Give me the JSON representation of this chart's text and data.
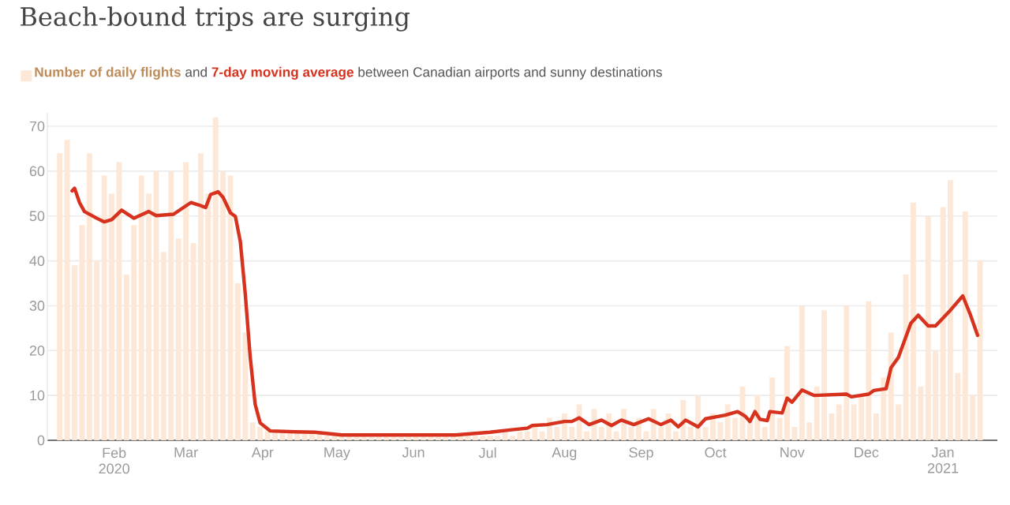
{
  "chart_data": {
    "type": "bar",
    "title": "Beach-bound trips are surging",
    "subtitle": "between Canadian airports and sunny destinations",
    "annotations": [
      "and"
    ],
    "xlim": [
      "2020-01-05",
      "2021-01-23"
    ],
    "ylim": [
      0,
      73
    ],
    "xticks": [
      {
        "value": "2020-02-01",
        "label": "Feb 2020"
      },
      {
        "value": "2020-03-01",
        "label": "Mar"
      },
      {
        "value": "2020-04-01",
        "label": "Apr"
      },
      {
        "value": "2020-05-01",
        "label": "May"
      },
      {
        "value": "2020-06-01",
        "label": "Jun"
      },
      {
        "value": "2020-07-01",
        "label": "Jul"
      },
      {
        "value": "2020-08-01",
        "label": "Aug"
      },
      {
        "value": "2020-09-01",
        "label": "Sep"
      },
      {
        "value": "2020-10-01",
        "label": "Oct"
      },
      {
        "value": "2020-11-01",
        "label": "Nov"
      },
      {
        "value": "2020-12-01",
        "label": "Dec"
      },
      {
        "value": "2021-01-01",
        "label": "Jan 2021"
      }
    ],
    "yticks": [
      0,
      10,
      20,
      30,
      40,
      50,
      60,
      70
    ],
    "grid": "y",
    "legend": "top",
    "series": [
      {
        "name": "Number of daily flights",
        "color": "#fde8d8",
        "x": [
          "2020-01-10",
          "2020-01-13",
          "2020-01-16",
          "2020-01-19",
          "2020-01-22",
          "2020-01-25",
          "2020-01-28",
          "2020-01-31",
          "2020-02-03",
          "2020-02-06",
          "2020-02-09",
          "2020-02-12",
          "2020-02-15",
          "2020-02-18",
          "2020-02-21",
          "2020-02-24",
          "2020-02-27",
          "2020-03-01",
          "2020-03-04",
          "2020-03-07",
          "2020-03-10",
          "2020-03-13",
          "2020-03-16",
          "2020-03-19",
          "2020-03-22",
          "2020-03-25",
          "2020-03-28",
          "2020-03-31",
          "2020-04-03",
          "2020-04-06",
          "2020-04-09",
          "2020-04-12",
          "2020-04-15",
          "2020-04-18",
          "2020-04-21",
          "2020-04-24",
          "2020-04-27",
          "2020-04-30",
          "2020-05-03",
          "2020-05-06",
          "2020-05-09",
          "2020-05-12",
          "2020-05-15",
          "2020-05-18",
          "2020-05-21",
          "2020-05-24",
          "2020-05-27",
          "2020-05-30",
          "2020-06-02",
          "2020-06-05",
          "2020-06-08",
          "2020-06-11",
          "2020-06-14",
          "2020-06-17",
          "2020-06-20",
          "2020-06-23",
          "2020-06-26",
          "2020-06-29",
          "2020-07-02",
          "2020-07-05",
          "2020-07-08",
          "2020-07-11",
          "2020-07-14",
          "2020-07-17",
          "2020-07-20",
          "2020-07-23",
          "2020-07-26",
          "2020-07-29",
          "2020-08-01",
          "2020-08-04",
          "2020-08-07",
          "2020-08-10",
          "2020-08-13",
          "2020-08-16",
          "2020-08-19",
          "2020-08-22",
          "2020-08-25",
          "2020-08-28",
          "2020-08-31",
          "2020-09-03",
          "2020-09-06",
          "2020-09-09",
          "2020-09-12",
          "2020-09-15",
          "2020-09-18",
          "2020-09-21",
          "2020-09-24",
          "2020-09-27",
          "2020-09-30",
          "2020-10-03",
          "2020-10-06",
          "2020-10-09",
          "2020-10-12",
          "2020-10-15",
          "2020-10-18",
          "2020-10-21",
          "2020-10-24",
          "2020-10-27",
          "2020-10-30",
          "2020-11-02",
          "2020-11-05",
          "2020-11-08",
          "2020-11-11",
          "2020-11-14",
          "2020-11-17",
          "2020-11-20",
          "2020-11-23",
          "2020-11-26",
          "2020-11-29",
          "2020-12-02",
          "2020-12-05",
          "2020-12-08",
          "2020-12-11",
          "2020-12-14",
          "2020-12-17",
          "2020-12-20",
          "2020-12-23",
          "2020-12-26",
          "2020-12-29",
          "2021-01-01",
          "2021-01-04",
          "2021-01-07",
          "2021-01-10",
          "2021-01-13",
          "2021-01-16"
        ],
        "values": [
          64,
          67,
          39,
          48,
          64,
          40,
          59,
          55,
          62,
          37,
          48,
          59,
          55,
          60,
          42,
          60,
          45,
          62,
          44,
          64,
          55,
          72,
          60,
          59,
          35,
          24,
          4,
          3,
          2,
          2,
          2,
          2,
          2,
          2,
          2,
          2,
          1,
          1,
          1,
          1,
          1,
          1,
          1,
          1,
          1,
          1,
          1,
          1,
          1,
          1,
          1,
          1,
          1,
          1,
          1,
          1,
          1,
          1,
          1,
          1,
          2,
          1,
          2,
          2,
          3,
          2,
          5,
          3,
          6,
          3,
          8,
          2,
          7,
          3,
          6,
          2,
          7,
          3,
          5,
          2,
          7,
          3,
          6,
          2,
          9,
          3,
          10,
          3,
          6,
          4,
          8,
          5,
          12,
          4,
          10,
          3,
          14,
          5,
          21,
          3,
          30,
          4,
          12,
          29,
          6,
          8,
          30,
          8,
          10,
          31,
          6,
          14,
          24,
          8,
          37,
          53,
          12,
          50,
          20,
          52,
          58,
          15,
          51,
          10,
          40
        ]
      },
      {
        "name": "7-day moving average",
        "type": "line",
        "color": "#d7321e",
        "x": [
          "2020-01-15",
          "2020-01-16",
          "2020-01-18",
          "2020-01-20",
          "2020-01-25",
          "2020-01-28",
          "2020-01-31",
          "2020-02-04",
          "2020-02-09",
          "2020-02-15",
          "2020-02-18",
          "2020-02-25",
          "2020-02-29",
          "2020-03-03",
          "2020-03-06",
          "2020-03-09",
          "2020-03-11",
          "2020-03-14",
          "2020-03-16",
          "2020-03-19",
          "2020-03-21",
          "2020-03-23",
          "2020-03-25",
          "2020-03-27",
          "2020-03-29",
          "2020-03-31",
          "2020-04-04",
          "2020-04-14",
          "2020-04-22",
          "2020-05-03",
          "2020-05-14",
          "2020-06-18",
          "2020-07-02",
          "2020-07-10",
          "2020-07-17",
          "2020-07-19",
          "2020-07-25",
          "2020-08-01",
          "2020-08-04",
          "2020-08-07",
          "2020-08-11",
          "2020-08-16",
          "2020-08-20",
          "2020-08-24",
          "2020-08-29",
          "2020-09-04",
          "2020-09-09",
          "2020-09-13",
          "2020-09-16",
          "2020-09-19",
          "2020-09-24",
          "2020-09-27",
          "2020-10-05",
          "2020-10-10",
          "2020-10-13",
          "2020-10-15",
          "2020-10-17",
          "2020-10-19",
          "2020-10-22",
          "2020-10-23",
          "2020-10-28",
          "2020-10-30",
          "2020-11-01",
          "2020-11-05",
          "2020-11-10",
          "2020-11-23",
          "2020-11-25",
          "2020-12-02",
          "2020-12-04",
          "2020-12-09",
          "2020-12-11",
          "2020-12-14",
          "2020-12-19",
          "2020-12-22",
          "2020-12-26",
          "2020-12-29",
          "2021-01-04",
          "2021-01-09",
          "2021-01-12",
          "2021-01-15"
        ],
        "values": [
          55.6,
          56.2,
          53,
          51,
          49.5,
          48.7,
          49.2,
          51.3,
          49.5,
          51,
          50.1,
          50.4,
          51.9,
          53,
          52.5,
          51.9,
          54.8,
          55.4,
          54.2,
          50.7,
          49.9,
          44.3,
          32.6,
          18.5,
          8,
          3.9,
          2.1,
          1.9,
          1.8,
          1.2,
          1.2,
          1.2,
          1.8,
          2.3,
          2.7,
          3.3,
          3.5,
          4.2,
          4.2,
          5,
          3.5,
          4.5,
          3.3,
          4.5,
          3.5,
          4.8,
          3.5,
          4.5,
          3,
          4.5,
          3,
          4.8,
          5.6,
          6.4,
          5.4,
          4.2,
          6.4,
          4.7,
          4.4,
          6.4,
          6.1,
          9.4,
          8.5,
          11.2,
          10,
          10.3,
          9.7,
          10.3,
          11.1,
          11.5,
          16.2,
          18.5,
          26.1,
          27.9,
          25.5,
          25.5,
          29,
          32.2,
          28.1,
          23.4
        ]
      }
    ]
  }
}
